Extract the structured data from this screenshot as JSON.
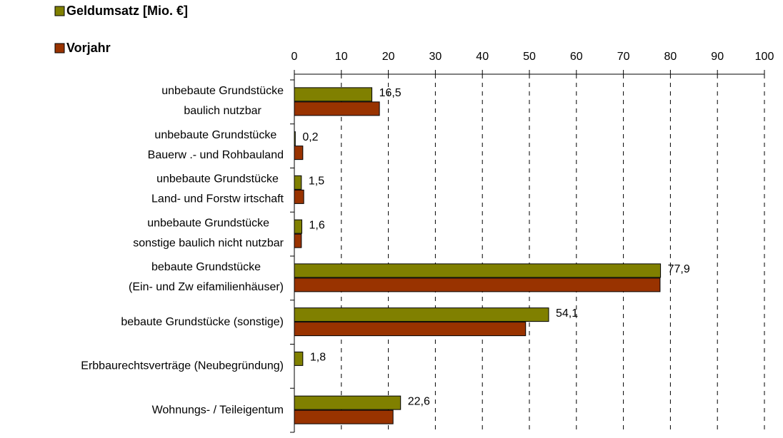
{
  "chart_data": {
    "type": "bar",
    "orientation": "horizontal",
    "categories": [
      [
        "unbebaute Grundstücke",
        "baulich nutzbar"
      ],
      [
        "unbebaute Grundstücke",
        "Bauerw .- und Rohbauland"
      ],
      [
        "unbebaute Grundstücke",
        "Land- und Forstw irtschaft"
      ],
      [
        "unbebaute Grundstücke",
        "sonstige baulich nicht nutzbar"
      ],
      [
        "bebaute Grundstücke",
        "(Ein- und Zw eifamilienhäuser)"
      ],
      [
        "bebaute Grundstücke (sonstige)"
      ],
      [
        "Erbbaurechtsverträge (Neubegründung)"
      ],
      [
        "Wohnungs- / Teileigentum"
      ]
    ],
    "series": [
      {
        "name": "Geldumsatz [Mio. €]",
        "color": "#808000",
        "values": [
          16.5,
          0.2,
          1.5,
          1.6,
          77.9,
          54.1,
          1.8,
          22.6
        ],
        "value_labels": [
          "16,5",
          "0,2",
          "1,5",
          "1,6",
          "77,9",
          "54,1",
          "1,8",
          "22,6"
        ]
      },
      {
        "name": "Vorjahr",
        "color": "#993300",
        "values": [
          18.1,
          1.8,
          2.0,
          1.5,
          77.8,
          49.2,
          null,
          21.0
        ]
      }
    ],
    "xlim": [
      0,
      100
    ],
    "xticks": [
      0,
      10,
      20,
      30,
      40,
      50,
      60,
      70,
      80,
      90,
      100
    ],
    "grid": true,
    "legend": "top-left"
  }
}
